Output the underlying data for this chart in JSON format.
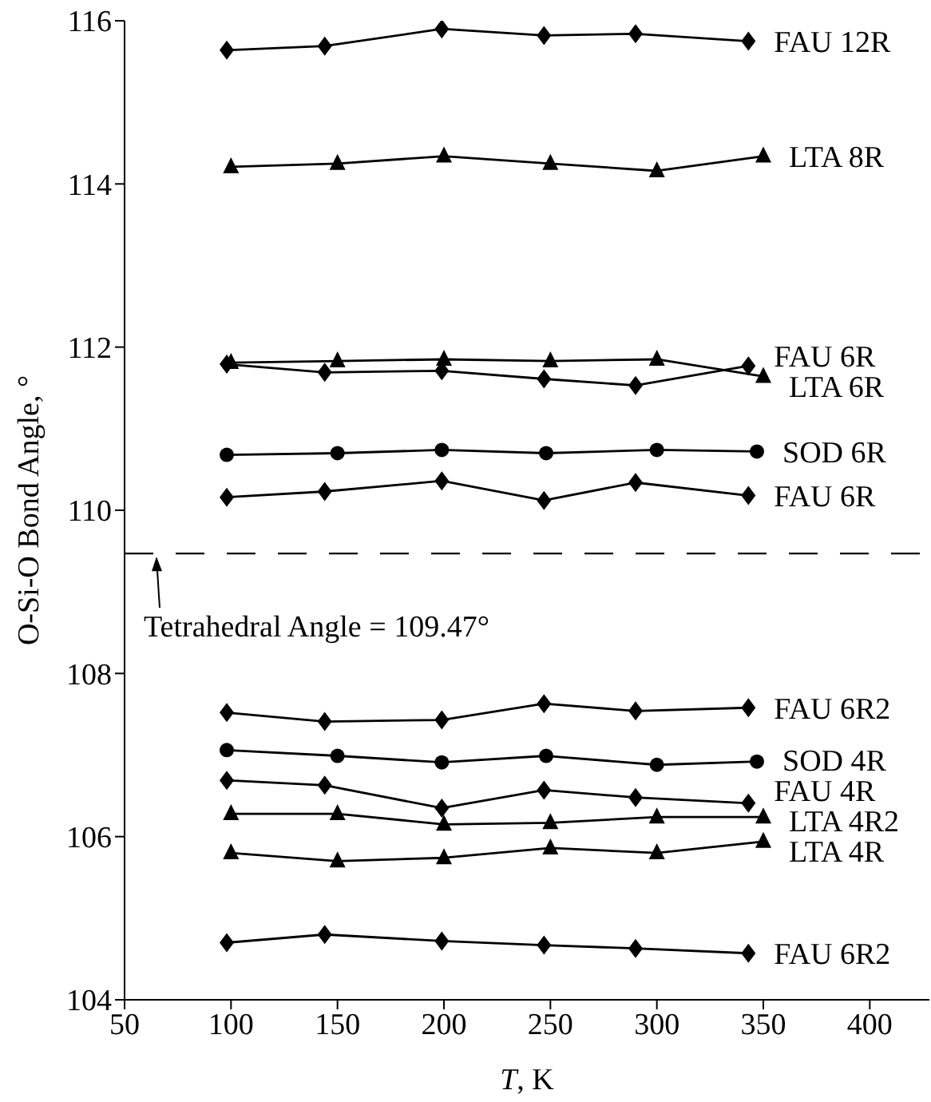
{
  "chart_data": {
    "type": "line",
    "xlabel": "T, K",
    "ylabel": "O-Si-O Bond Angle, °",
    "xlim": [
      50,
      428
    ],
    "xticks": [
      50,
      100,
      150,
      200,
      250,
      300,
      350,
      400
    ],
    "ylim": [
      104,
      116
    ],
    "yticks": [
      104,
      106,
      108,
      110,
      112,
      114,
      116
    ],
    "series": [
      {
        "name": "FAU 12R",
        "color": "#000000",
        "marker": "diamond",
        "x": [
          98,
          144,
          199,
          247,
          290,
          343
        ],
        "values": [
          115.64,
          115.69,
          115.9,
          115.82,
          115.84,
          115.75
        ]
      },
      {
        "name": "LTA 8R",
        "color": "#000000",
        "marker": "triangle",
        "x": [
          100,
          150,
          200,
          250,
          300,
          350
        ],
        "values": [
          114.21,
          114.25,
          114.34,
          114.25,
          114.16,
          114.34
        ]
      },
      {
        "name": "FAU 6R",
        "color": "#000000",
        "marker": "diamond",
        "x": [
          98,
          144,
          199,
          247,
          290,
          343
        ],
        "values": [
          111.79,
          111.69,
          111.71,
          111.61,
          111.53,
          111.77
        ]
      },
      {
        "name": "LTA 6R",
        "color": "#000000",
        "marker": "triangle",
        "x": [
          100,
          150,
          200,
          250,
          300,
          350
        ],
        "values": [
          111.81,
          111.83,
          111.85,
          111.83,
          111.85,
          111.64
        ]
      },
      {
        "name": "SOD 6R",
        "color": "#000000",
        "marker": "circle",
        "x": [
          98,
          150,
          199,
          248,
          300,
          347
        ],
        "values": [
          110.68,
          110.7,
          110.74,
          110.7,
          110.74,
          110.72
        ]
      },
      {
        "name": "FAU 6R",
        "color": "#000000",
        "marker": "diamond",
        "x": [
          98,
          144,
          199,
          247,
          290,
          343
        ],
        "values": [
          110.16,
          110.23,
          110.36,
          110.12,
          110.34,
          110.18
        ]
      },
      {
        "name": "FAU 6R2",
        "color": "#000000",
        "marker": "diamond",
        "x": [
          98,
          144,
          199,
          247,
          290,
          343
        ],
        "values": [
          107.52,
          107.41,
          107.43,
          107.63,
          107.54,
          107.58
        ]
      },
      {
        "name": "SOD 4R",
        "color": "#000000",
        "marker": "circle",
        "x": [
          98,
          150,
          199,
          248,
          300,
          347
        ],
        "values": [
          107.06,
          106.99,
          106.91,
          106.99,
          106.88,
          106.92
        ]
      },
      {
        "name": "FAU 4R",
        "color": "#000000",
        "marker": "diamond",
        "x": [
          98,
          144,
          199,
          247,
          290,
          343
        ],
        "values": [
          106.69,
          106.63,
          106.35,
          106.57,
          106.48,
          106.41
        ]
      },
      {
        "name": "LTA 4R2",
        "color": "#000000",
        "marker": "triangle",
        "x": [
          100,
          150,
          200,
          250,
          300,
          350
        ],
        "values": [
          106.28,
          106.28,
          106.15,
          106.17,
          106.24,
          106.24
        ]
      },
      {
        "name": "LTA 4R",
        "color": "#000000",
        "marker": "triangle",
        "x": [
          100,
          150,
          200,
          250,
          300,
          350
        ],
        "values": [
          105.8,
          105.7,
          105.74,
          105.86,
          105.8,
          105.94
        ]
      },
      {
        "name": "FAU 6R2",
        "color": "#000000",
        "marker": "diamond",
        "x": [
          98,
          144,
          199,
          247,
          290,
          343
        ],
        "values": [
          104.7,
          104.8,
          104.72,
          104.67,
          104.63,
          104.57
        ]
      }
    ],
    "ref_lines": [
      {
        "axis": "y",
        "value": 109.47,
        "line_style": "dashed",
        "color": "#000000"
      }
    ],
    "annotations": [
      {
        "text": "Tetrahedral Angle = 109.47°",
        "x": 65,
        "y": 109.47
      }
    ]
  }
}
